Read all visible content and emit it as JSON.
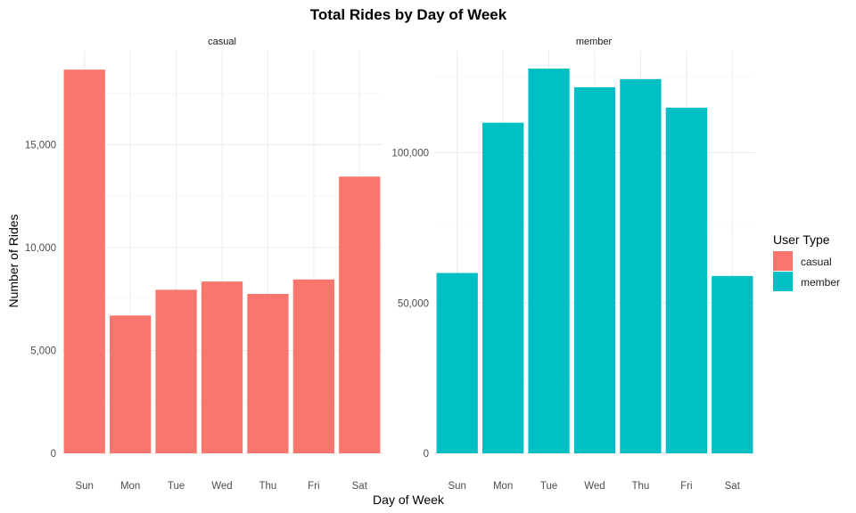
{
  "chart_data": {
    "type": "bar",
    "title": "Total Rides by Day of Week",
    "xlabel": "Day of Week",
    "ylabel": "Number of Rides",
    "categories": [
      "Sun",
      "Mon",
      "Tue",
      "Wed",
      "Thu",
      "Fri",
      "Sat"
    ],
    "legend": {
      "title": "User Type",
      "position": "right",
      "entries": [
        {
          "label": "casual",
          "color": "#F8766D"
        },
        {
          "label": "member",
          "color": "#00BFC4"
        }
      ]
    },
    "grid": true,
    "panels": [
      {
        "strip_label": "casual",
        "color": "#F8766D",
        "ylim": [
          0,
          18700
        ],
        "yticks": [
          0,
          5000,
          10000,
          15000
        ],
        "ytick_labels": [
          "0",
          "5,000",
          "10,000",
          "15,000"
        ],
        "values": [
          18650,
          6700,
          7950,
          8350,
          7750,
          8450,
          13450
        ]
      },
      {
        "strip_label": "member",
        "color": "#00BFC4",
        "ylim": [
          0,
          128000
        ],
        "yticks": [
          0,
          50000,
          100000
        ],
        "ytick_labels": [
          "0",
          "50,000",
          "100,000"
        ],
        "values": [
          60000,
          110000,
          128000,
          121800,
          124500,
          115000,
          59000
        ]
      }
    ]
  }
}
